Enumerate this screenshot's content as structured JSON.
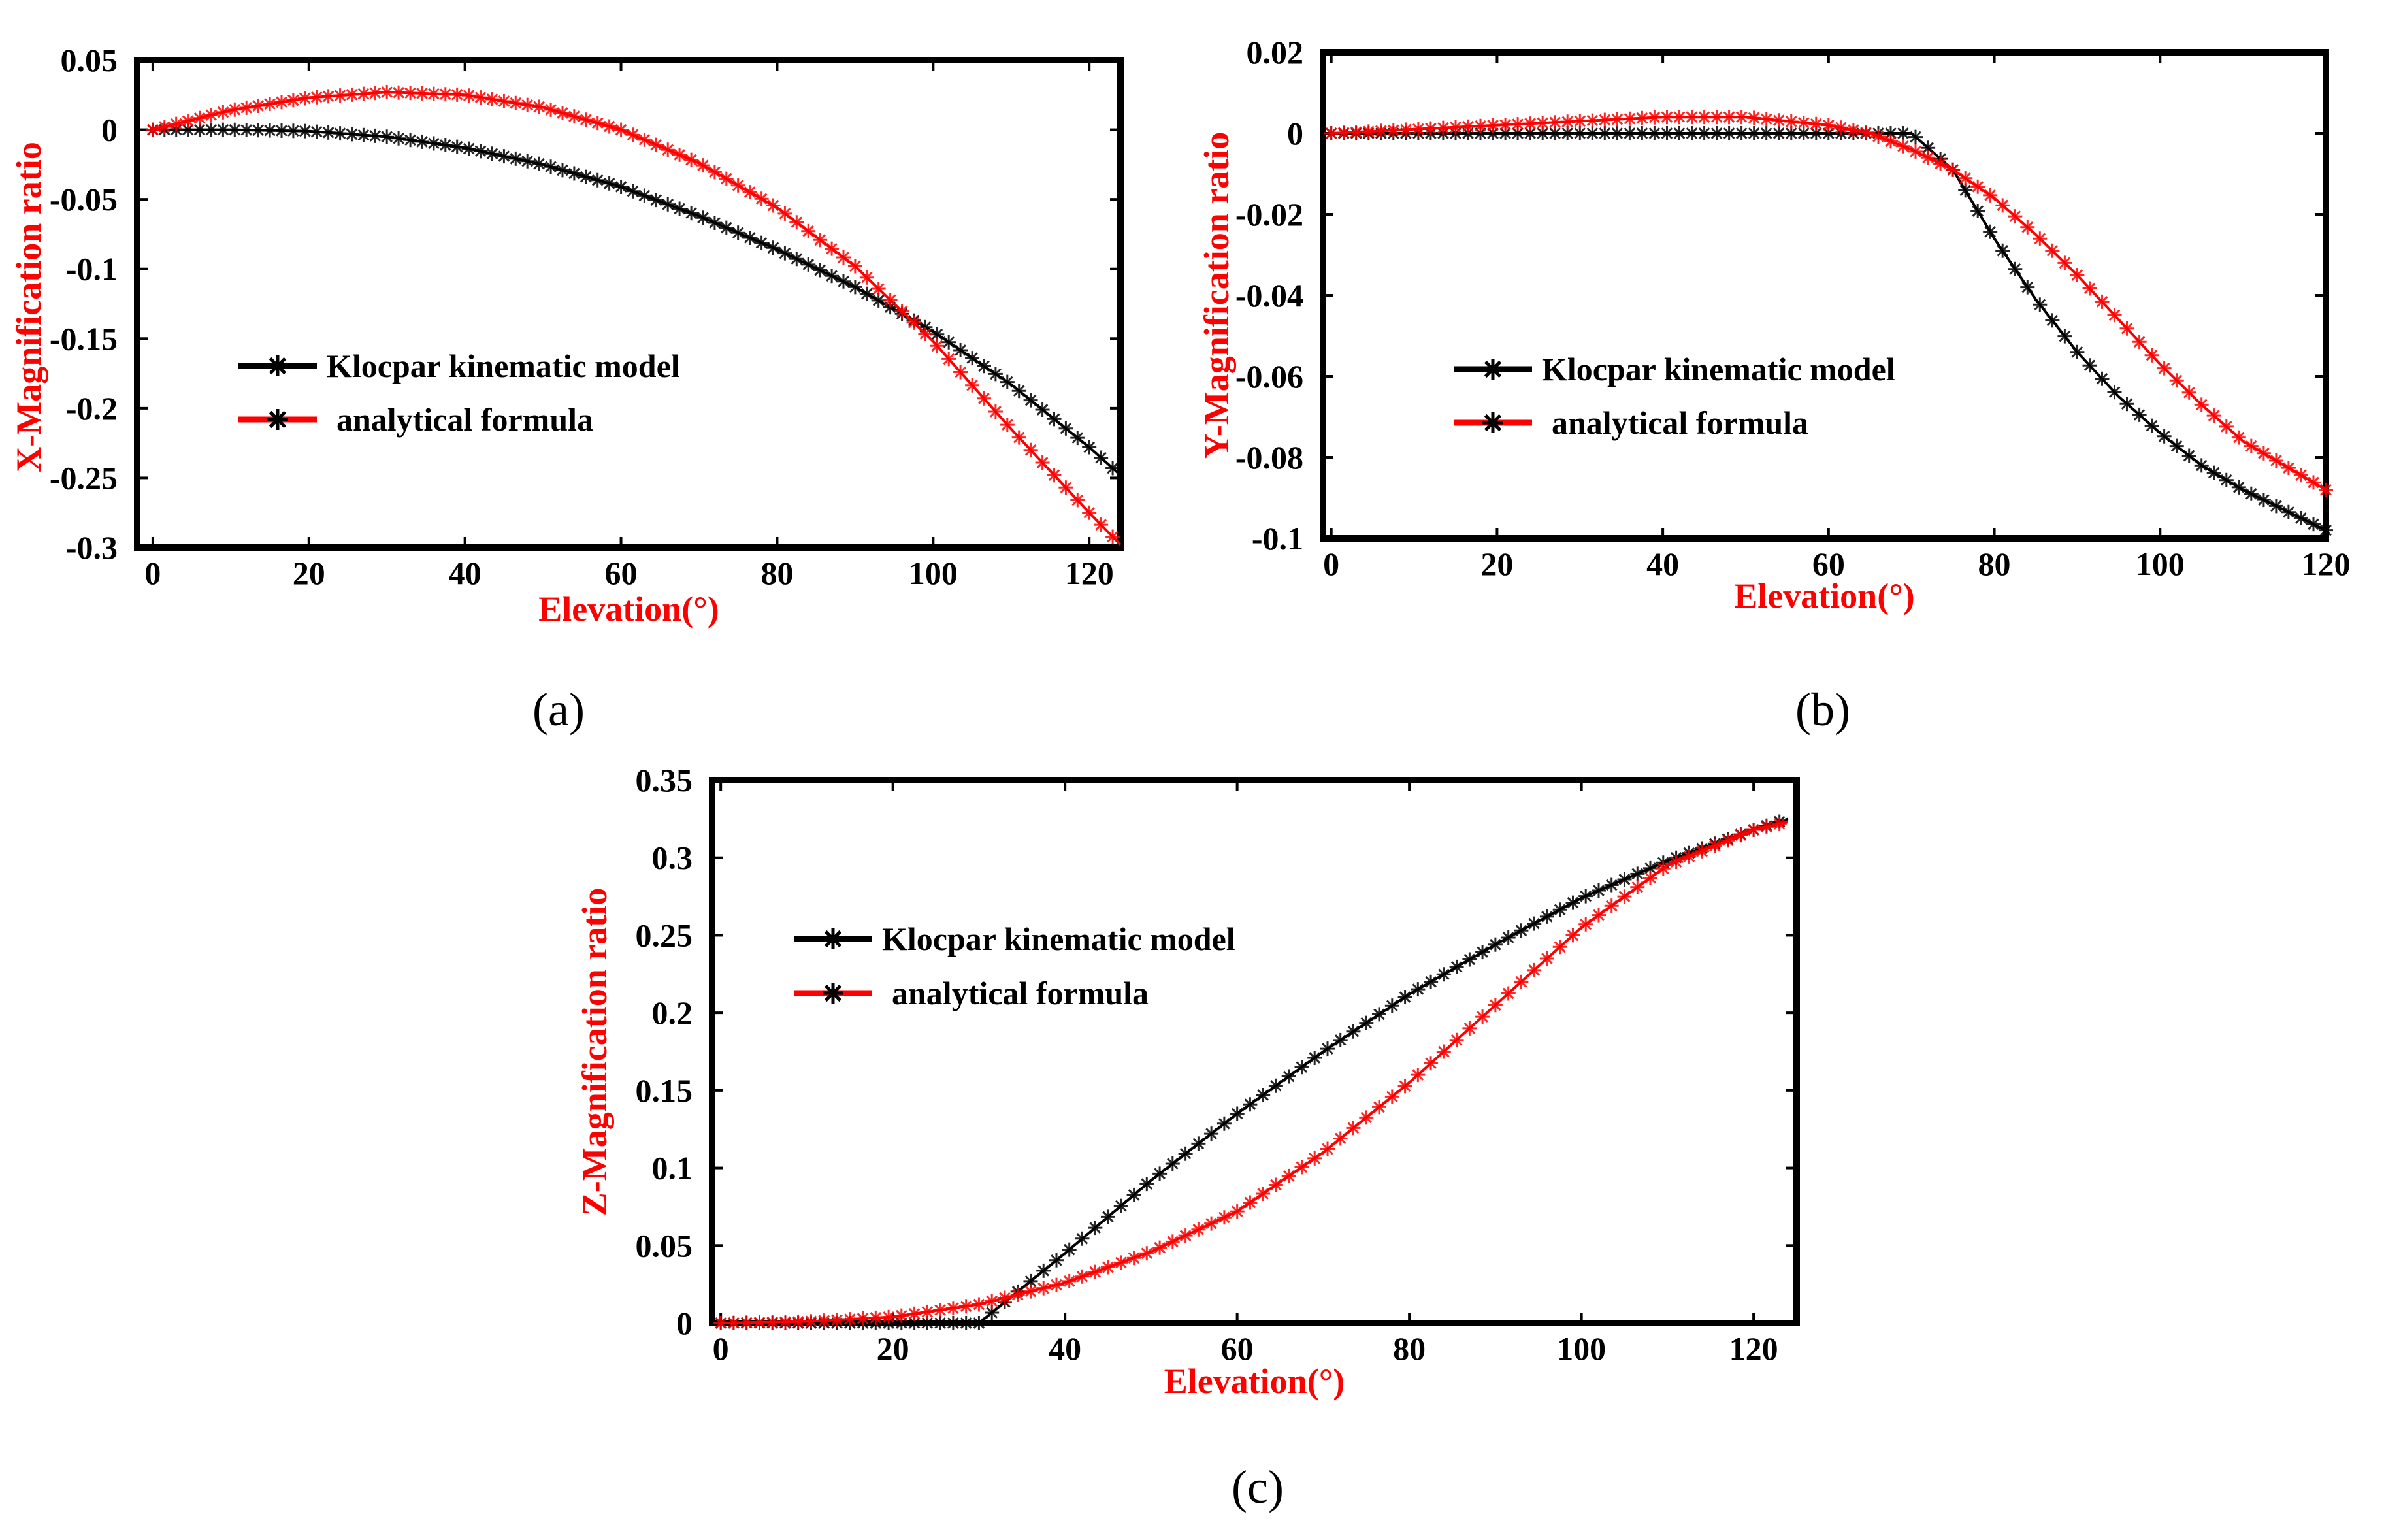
{
  "chart_data": [
    {
      "id": "a",
      "type": "line",
      "caption": "(a)",
      "xlabel": "Elevation(°)",
      "ylabel": "X-Magnification ratio",
      "xlim": [
        -2,
        124
      ],
      "ylim": [
        -0.3,
        0.05
      ],
      "xticks": [
        0,
        20,
        40,
        60,
        80,
        100,
        120
      ],
      "yticks": [
        0.05,
        0,
        -0.05,
        -0.1,
        -0.15,
        -0.2,
        -0.25,
        -0.3
      ],
      "ytick_labels": [
        "0.05",
        "0",
        "-0.05",
        "-0.1",
        "-0.15",
        "-0.2",
        "-0.25",
        "-0.3"
      ],
      "legend_position": "center-left",
      "x": [
        0,
        10,
        20,
        30,
        40,
        50,
        60,
        70,
        80,
        90,
        100,
        110,
        120,
        124
      ],
      "series": [
        {
          "name": "Klocpar kinematic model",
          "color": "#000000",
          "values": [
            0,
            0,
            -0.001,
            -0.005,
            -0.013,
            -0.025,
            -0.041,
            -0.062,
            -0.086,
            -0.113,
            -0.145,
            -0.183,
            -0.228,
            -0.248
          ]
        },
        {
          "name": "analytical formula",
          "color": "#ff0000",
          "values": [
            0,
            0.014,
            0.023,
            0.027,
            0.025,
            0.016,
            0.0,
            -0.024,
            -0.056,
            -0.098,
            -0.152,
            -0.215,
            -0.275,
            -0.298
          ]
        }
      ]
    },
    {
      "id": "b",
      "type": "line",
      "caption": "(b)",
      "xlabel": "Elevation(°)",
      "ylabel": "Y-Magnification ratio",
      "xlim": [
        -1,
        120
      ],
      "ylim": [
        -0.1,
        0.02
      ],
      "xticks": [
        0,
        20,
        40,
        60,
        80,
        100,
        120
      ],
      "yticks": [
        0.02,
        0,
        -0.02,
        -0.04,
        -0.06,
        -0.08,
        -0.1
      ],
      "ytick_labels": [
        "0.02",
        "0",
        "-0.02",
        "-0.04",
        "-0.06",
        "-0.08",
        "-0.1"
      ],
      "legend_position": "center-left",
      "x": [
        0,
        10,
        20,
        30,
        40,
        50,
        60,
        65,
        70,
        75,
        80,
        85,
        90,
        95,
        100,
        105,
        110,
        115,
        120
      ],
      "series": [
        {
          "name": "Klocpar kinematic model",
          "color": "#000000",
          "values": [
            0,
            0,
            0,
            0,
            0,
            0,
            0,
            0,
            0,
            -0.009,
            -0.026,
            -0.041,
            -0.054,
            -0.065,
            -0.074,
            -0.082,
            -0.088,
            -0.093,
            -0.098
          ]
        },
        {
          "name": "analytical formula",
          "color": "#ff0000",
          "values": [
            0,
            0.001,
            0.002,
            0.003,
            0.004,
            0.004,
            0.002,
            0,
            -0.004,
            -0.009,
            -0.016,
            -0.025,
            -0.035,
            -0.046,
            -0.057,
            -0.067,
            -0.076,
            -0.082,
            -0.088
          ]
        }
      ]
    },
    {
      "id": "c",
      "type": "line",
      "caption": "(c)",
      "xlabel": "Elevation(°)",
      "ylabel": "Z-Magnification ratio",
      "xlim": [
        -1,
        125
      ],
      "ylim": [
        0,
        0.35
      ],
      "xticks": [
        0,
        20,
        40,
        60,
        80,
        100,
        120
      ],
      "yticks": [
        0.35,
        0.3,
        0.25,
        0.2,
        0.15,
        0.1,
        0.05,
        0
      ],
      "ytick_labels": [
        "0.35",
        "0.3",
        "0.25",
        "0.2",
        "0.15",
        "0.1",
        "0.05",
        "0"
      ],
      "legend_position": "top-left",
      "x": [
        0,
        10,
        20,
        30,
        40,
        50,
        60,
        70,
        80,
        90,
        100,
        110,
        120,
        124
      ],
      "series": [
        {
          "name": "Klocpar kinematic model",
          "color": "#000000",
          "values": [
            0,
            0,
            0,
            0,
            0.045,
            0.092,
            0.135,
            0.175,
            0.212,
            0.244,
            0.274,
            0.298,
            0.318,
            0.325
          ]
        },
        {
          "name": "analytical formula",
          "color": "#ff0000",
          "values": [
            0,
            0.001,
            0.004,
            0.012,
            0.026,
            0.046,
            0.072,
            0.11,
            0.155,
            0.205,
            0.255,
            0.295,
            0.318,
            0.323
          ]
        }
      ]
    }
  ]
}
